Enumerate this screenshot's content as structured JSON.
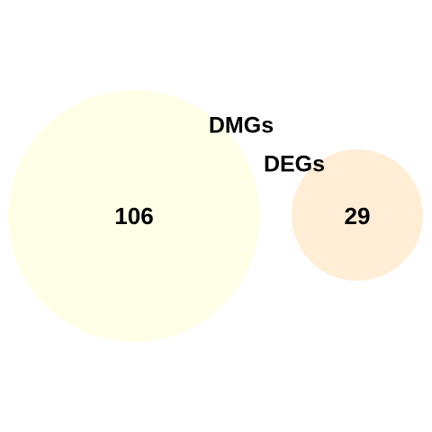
{
  "sets": [
    {
      "label": "DMGs",
      "count": "106",
      "color": "#FFFFE8"
    },
    {
      "label": "DEGs",
      "count": "29",
      "color": "#FFEDD6"
    }
  ]
}
